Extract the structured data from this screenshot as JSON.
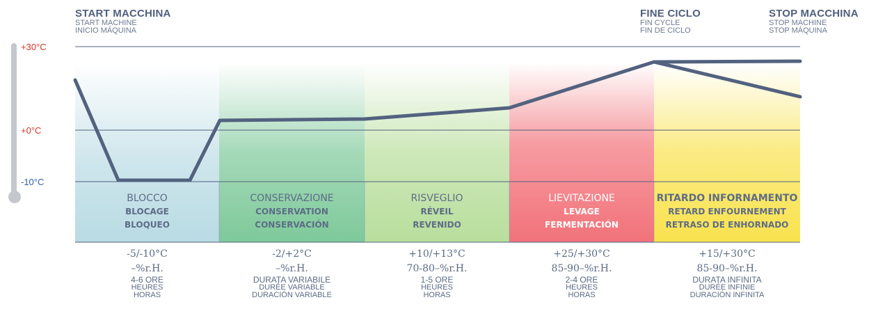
{
  "header": {
    "start": {
      "title": "START MACCHINA",
      "en": "START MACHINE",
      "es": "INICIO MÁQUINA"
    },
    "end": {
      "title": "FINE CICLO",
      "en": "FIN CYCLE",
      "es": "FIN DE CICLO"
    },
    "stop": {
      "title": "STOP MACCHINA",
      "en": "STOP MACHINE",
      "es": "STOP MÁQUINA"
    }
  },
  "scale": {
    "top": "+30°C",
    "zero": "+0°C",
    "bottom": "-10°C",
    "top_color": "#d9342b",
    "bottom_color": "#2f5fa8"
  },
  "phases": [
    {
      "it": "BLOCCO",
      "fr": "BLOCAGE",
      "es": "BLOQUEO",
      "temp": "-5/-10°C",
      "humidity": "–%r.H.",
      "dur_it": "4-6 ORE",
      "dur_fr": "HEURES",
      "dur_es": "HORAS",
      "color": "#b9dbe4",
      "text_color": "#5d6c86"
    },
    {
      "it": "CONSERVAZIONE",
      "fr": "CONSERVATION",
      "es": "CONSERVACIÓN",
      "temp": "-2/+2°C",
      "humidity": "–%r.H.",
      "dur_it": "DURATA VARIABILE",
      "dur_fr": "DURÉE VARIABLE",
      "dur_es": "DURACIÓN VARIABLE",
      "color": "#7ec99a",
      "text_color": "#5d6c86"
    },
    {
      "it": "RISVEGLIO",
      "fr": "RÉVEIL",
      "es": "REVENIDO",
      "temp": "+10/+13°C",
      "humidity": "70-80–%r.H.",
      "dur_it": "1-5 ORE",
      "dur_fr": "HEURES",
      "dur_es": "HORAS",
      "color": "#b8de9c",
      "text_color": "#5d6c86"
    },
    {
      "it": "LIEVITAZIONE",
      "fr": "LEVAGE",
      "es": "FERMENTACIÓN",
      "temp": "+25/+30°C",
      "humidity": "85-90–%r.H.",
      "dur_it": "2-4 ORE",
      "dur_fr": "HEURES",
      "dur_es": "HORAS",
      "color": "#f2727a",
      "text_color": "#ffffff"
    },
    {
      "it": "RITARDO INFORNAMENTO",
      "fr": "RETARD ENFOURNEMENT",
      "es": "RETRASO DE ENHORNADO",
      "temp": "+15/+30°C",
      "humidity": "85-90–%r.H.",
      "dur_it": "DURATA INFINITA",
      "dur_fr": "DURÉE INFINIE",
      "dur_es": "DURACIÓN INFINITA",
      "color": "#f9e24e",
      "text_color": "#5d6c86"
    }
  ],
  "curve_color": "#52627f"
}
